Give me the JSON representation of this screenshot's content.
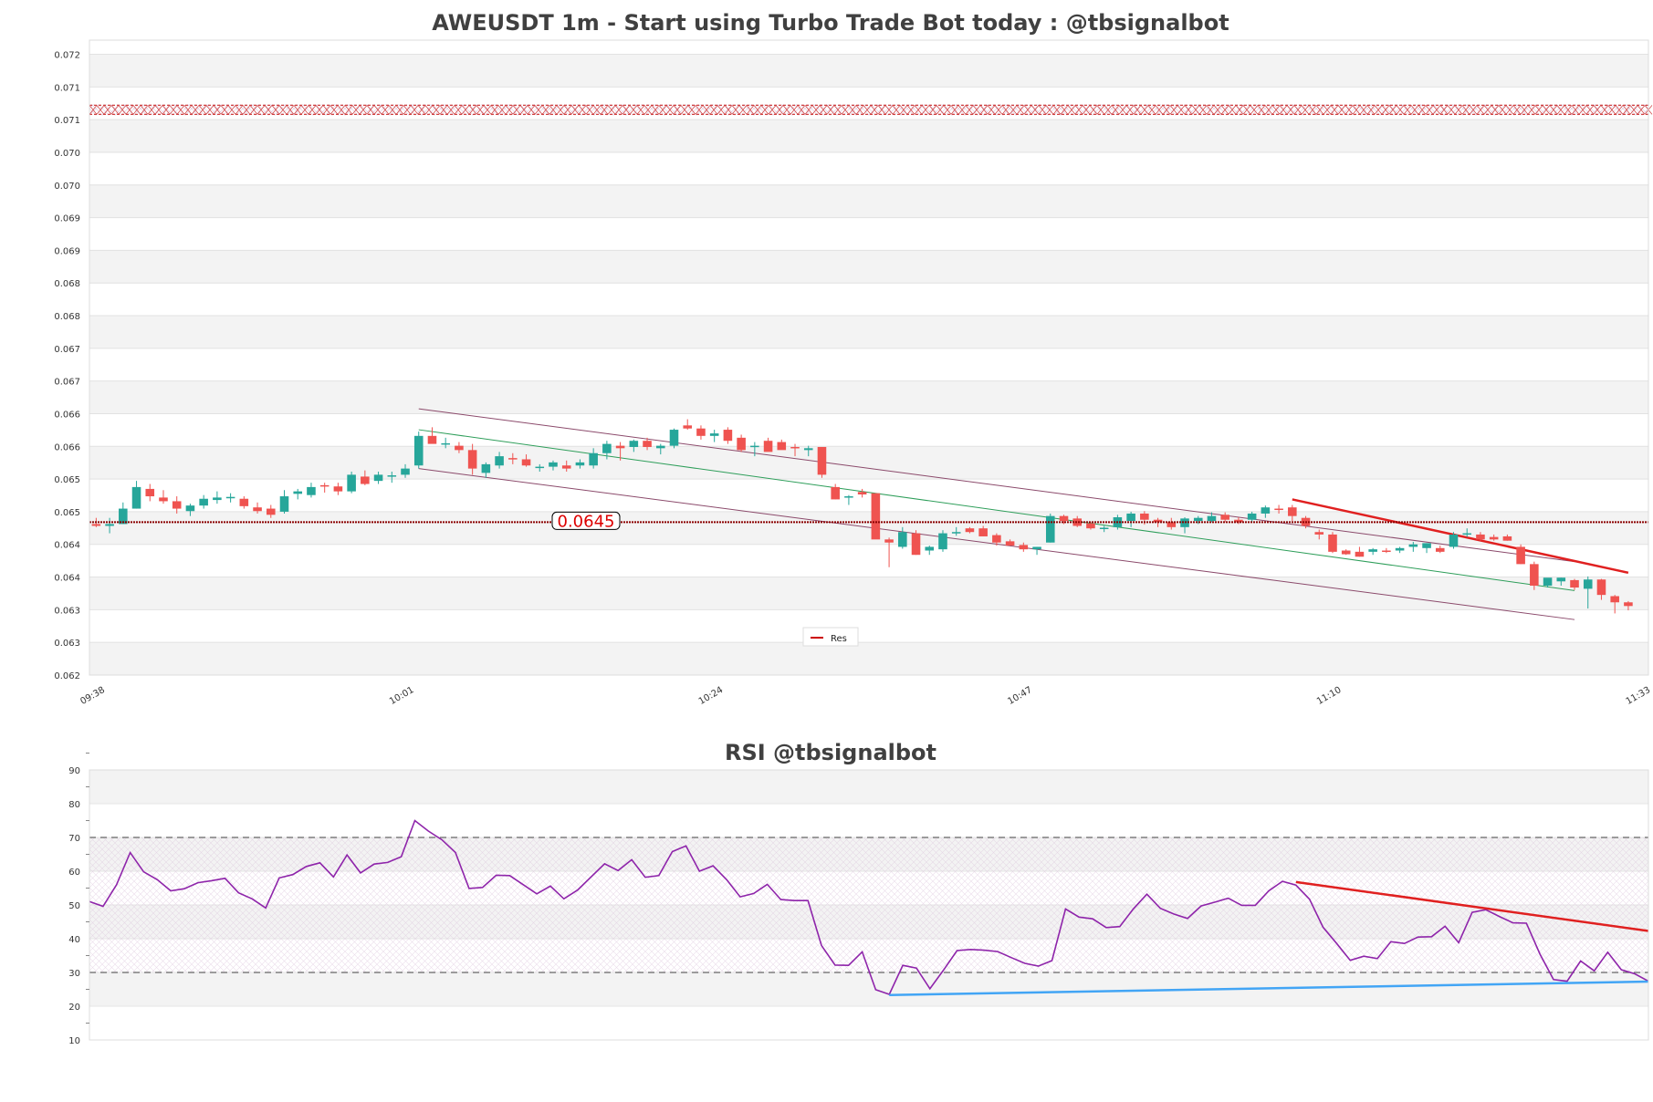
{
  "chart_data": [
    {
      "type": "candlestick",
      "title": "AWEUSDT 1m - Start using Turbo Trade Bot today : @tbsignalbot",
      "y_ticks": [
        "0.062",
        "0.063",
        "0.063",
        "0.064",
        "0.064",
        "0.065",
        "0.065",
        "0.066",
        "0.066",
        "0.067",
        "0.067",
        "0.068",
        "0.068",
        "0.069",
        "0.069",
        "0.070",
        "0.070",
        "0.071",
        "0.071",
        "0.072"
      ],
      "ylim": [
        0.062,
        0.0723
      ],
      "x_ticks": [
        "09:38",
        "10:01",
        "10:24",
        "10:47",
        "11:10",
        "11:33"
      ],
      "price_label": "0.0645",
      "legend": [
        "Res"
      ],
      "levels": {
        "support_line": 0.06448,
        "resistance_zone": 0.07117
      },
      "candles": [
        [
          0.06445,
          0.06455,
          0.0644,
          0.06442
        ],
        [
          0.06442,
          0.06455,
          0.0643,
          0.06445
        ],
        [
          0.06445,
          0.0648,
          0.06445,
          0.0647
        ],
        [
          0.0647,
          0.06515,
          0.0647,
          0.06505
        ],
        [
          0.06502,
          0.0651,
          0.06482,
          0.0649
        ],
        [
          0.06488,
          0.065,
          0.06478,
          0.06482
        ],
        [
          0.06482,
          0.0649,
          0.06462,
          0.0647
        ],
        [
          0.06466,
          0.06478,
          0.06458,
          0.06475
        ],
        [
          0.06475,
          0.06492,
          0.0647,
          0.06486
        ],
        [
          0.06484,
          0.06498,
          0.06478,
          0.06488
        ],
        [
          0.06488,
          0.06495,
          0.0648,
          0.06489
        ],
        [
          0.06486,
          0.0649,
          0.0647,
          0.06474
        ],
        [
          0.06472,
          0.0648,
          0.06462,
          0.06466
        ],
        [
          0.0647,
          0.06476,
          0.06455,
          0.0646
        ],
        [
          0.06465,
          0.065,
          0.06462,
          0.0649
        ],
        [
          0.06494,
          0.06502,
          0.06485,
          0.06498
        ],
        [
          0.06492,
          0.06512,
          0.06488,
          0.06505
        ],
        [
          0.06508,
          0.06512,
          0.06496,
          0.06506
        ],
        [
          0.06506,
          0.06512,
          0.06492,
          0.06498
        ],
        [
          0.06498,
          0.0653,
          0.06495,
          0.06525
        ],
        [
          0.06522,
          0.06532,
          0.06508,
          0.0651
        ],
        [
          0.06515,
          0.0653,
          0.0651,
          0.06525
        ],
        [
          0.06522,
          0.0653,
          0.06512,
          0.06524
        ],
        [
          0.06525,
          0.06542,
          0.0652,
          0.06535
        ],
        [
          0.0654,
          0.06595,
          0.06535,
          0.06588
        ],
        [
          0.06588,
          0.06602,
          0.06578,
          0.06575
        ],
        [
          0.06575,
          0.06585,
          0.06568,
          0.06576
        ],
        [
          0.06572,
          0.06578,
          0.0656,
          0.06565
        ],
        [
          0.06565,
          0.06575,
          0.06525,
          0.06535
        ],
        [
          0.06528,
          0.06545,
          0.0652,
          0.06542
        ],
        [
          0.0654,
          0.06562,
          0.06535,
          0.06555
        ],
        [
          0.06552,
          0.0656,
          0.06542,
          0.0655
        ],
        [
          0.0655,
          0.06558,
          0.06538,
          0.0654
        ],
        [
          0.06538,
          0.06542,
          0.0653,
          0.06538
        ],
        [
          0.06538,
          0.06548,
          0.06532,
          0.06545
        ],
        [
          0.0654,
          0.06548,
          0.0653,
          0.06535
        ],
        [
          0.0654,
          0.0655,
          0.06535,
          0.06545
        ],
        [
          0.0654,
          0.06568,
          0.06535,
          0.0656
        ],
        [
          0.0656,
          0.0658,
          0.0655,
          0.06575
        ],
        [
          0.06572,
          0.06578,
          0.06548,
          0.06568
        ],
        [
          0.0657,
          0.06582,
          0.06562,
          0.0658
        ],
        [
          0.0658,
          0.06585,
          0.06565,
          0.0657
        ],
        [
          0.06568,
          0.06575,
          0.06558,
          0.06572
        ],
        [
          0.06572,
          0.066,
          0.06568,
          0.06598
        ],
        [
          0.06605,
          0.06615,
          0.06598,
          0.066
        ],
        [
          0.066,
          0.06605,
          0.06582,
          0.06588
        ],
        [
          0.06588,
          0.06598,
          0.06578,
          0.06592
        ],
        [
          0.06598,
          0.06602,
          0.06575,
          0.0658
        ],
        [
          0.06585,
          0.0659,
          0.06562,
          0.06565
        ],
        [
          0.0657,
          0.06578,
          0.06555,
          0.06572
        ],
        [
          0.0658,
          0.06585,
          0.06568,
          0.06562
        ],
        [
          0.06578,
          0.06582,
          0.06568,
          0.06565
        ],
        [
          0.0657,
          0.06575,
          0.06555,
          0.06568
        ],
        [
          0.06565,
          0.06572,
          0.06555,
          0.06568
        ],
        [
          0.0657,
          0.0657,
          0.0652,
          0.06525
        ],
        [
          0.06505,
          0.0651,
          0.06485,
          0.06485
        ],
        [
          0.06488,
          0.06492,
          0.06476,
          0.0649
        ],
        [
          0.06497,
          0.06502,
          0.06488,
          0.06493
        ],
        [
          0.06495,
          0.06495,
          0.0643,
          0.0642
        ],
        [
          0.0642,
          0.06423,
          0.06375,
          0.06415
        ],
        [
          0.06408,
          0.0644,
          0.06405,
          0.06432
        ],
        [
          0.0643,
          0.06435,
          0.06395,
          0.06395
        ],
        [
          0.06402,
          0.0641,
          0.06395,
          0.06408
        ],
        [
          0.06404,
          0.06435,
          0.064,
          0.0643
        ],
        [
          0.0643,
          0.0644,
          0.06426,
          0.06432
        ],
        [
          0.06438,
          0.0644,
          0.0643,
          0.06432
        ],
        [
          0.06438,
          0.06442,
          0.06425,
          0.06425
        ],
        [
          0.06427,
          0.0643,
          0.0641,
          0.06415
        ],
        [
          0.06417,
          0.0642,
          0.0641,
          0.0641
        ],
        [
          0.06411,
          0.06415,
          0.064,
          0.06404
        ],
        [
          0.06404,
          0.06408,
          0.06395,
          0.06408
        ],
        [
          0.06415,
          0.06462,
          0.06415,
          0.06458
        ],
        [
          0.06458,
          0.0646,
          0.06445,
          0.0645
        ],
        [
          0.06454,
          0.06458,
          0.0644,
          0.06442
        ],
        [
          0.06446,
          0.06448,
          0.06436,
          0.06438
        ],
        [
          0.06438,
          0.06442,
          0.06432,
          0.06439
        ],
        [
          0.0644,
          0.0646,
          0.06436,
          0.06456
        ],
        [
          0.0645,
          0.06465,
          0.0644,
          0.06462
        ],
        [
          0.06462,
          0.06466,
          0.06444,
          0.06452
        ],
        [
          0.06452,
          0.06455,
          0.0644,
          0.06448
        ],
        [
          0.06448,
          0.06455,
          0.06436,
          0.0644
        ],
        [
          0.0644,
          0.06456,
          0.0643,
          0.06454
        ],
        [
          0.0645,
          0.06458,
          0.06445,
          0.06455
        ],
        [
          0.0645,
          0.06464,
          0.06448,
          0.06458
        ],
        [
          0.0646,
          0.06464,
          0.06448,
          0.06452
        ],
        [
          0.06452,
          0.06456,
          0.06445,
          0.06448
        ],
        [
          0.06452,
          0.06465,
          0.06448,
          0.06462
        ],
        [
          0.06462,
          0.06475,
          0.06455,
          0.06472
        ],
        [
          0.0647,
          0.06476,
          0.06462,
          0.06468
        ],
        [
          0.06472,
          0.06476,
          0.0645,
          0.06458
        ],
        [
          0.06455,
          0.06458,
          0.06438,
          0.06442
        ],
        [
          0.06432,
          0.06436,
          0.0642,
          0.06428
        ],
        [
          0.06428,
          0.06432,
          0.06398,
          0.064
        ],
        [
          0.06402,
          0.06404,
          0.06395,
          0.06396
        ],
        [
          0.064,
          0.06408,
          0.06392,
          0.06392
        ],
        [
          0.064,
          0.06406,
          0.06395,
          0.06404
        ],
        [
          0.06402,
          0.06406,
          0.06398,
          0.064
        ],
        [
          0.06402,
          0.06408,
          0.06398,
          0.06406
        ],
        [
          0.06408,
          0.06416,
          0.064,
          0.06412
        ],
        [
          0.06406,
          0.06414,
          0.06398,
          0.06414
        ],
        [
          0.06406,
          0.0641,
          0.06398,
          0.064
        ],
        [
          0.06408,
          0.06432,
          0.06405,
          0.06428
        ],
        [
          0.06428,
          0.06438,
          0.06424,
          0.0643
        ],
        [
          0.06428,
          0.06432,
          0.06418,
          0.0642
        ],
        [
          0.06424,
          0.06428,
          0.06418,
          0.0642
        ],
        [
          0.06425,
          0.06428,
          0.06418,
          0.06418
        ],
        [
          0.06408,
          0.06412,
          0.0638,
          0.0638
        ],
        [
          0.0638,
          0.06384,
          0.06338,
          0.06345
        ],
        [
          0.06345,
          0.06352,
          0.06342,
          0.06358
        ],
        [
          0.06352,
          0.06358,
          0.06345,
          0.06358
        ],
        [
          0.06354,
          0.06356,
          0.06338,
          0.06342
        ],
        [
          0.0634,
          0.0636,
          0.06308,
          0.06355
        ],
        [
          0.06355,
          0.06356,
          0.06322,
          0.0633
        ],
        [
          0.06328,
          0.0633,
          0.063,
          0.06318
        ],
        [
          0.06318,
          0.0632,
          0.06305,
          0.06312
        ]
      ]
    },
    {
      "type": "line",
      "title": "RSI @tbsignalbot",
      "y_ticks": [
        10,
        20,
        30,
        40,
        50,
        60,
        70,
        80,
        90
      ],
      "ylim": [
        10,
        90
      ],
      "bands": {
        "upper": 70,
        "lower": 30
      },
      "series": [
        {
          "values": [
            51,
            49.6,
            56,
            65.5,
            59.8,
            57.5,
            54.2,
            54.8,
            56.6,
            57.2,
            57.9,
            53.6,
            51.8,
            49.1,
            58,
            59,
            61.4,
            62.5,
            58.3,
            64.8,
            59.5,
            62.1,
            62.6,
            64.3,
            75,
            71.9,
            69.3,
            65.5,
            54.9,
            55.2,
            58.8,
            58.7,
            56,
            53.3,
            55.6,
            51.8,
            54.4,
            58.3,
            62.2,
            60.2,
            63.4,
            58.2,
            58.7,
            65.8,
            67.5,
            60,
            61.6,
            57.5,
            52.4,
            53.4,
            56.1,
            51.6,
            51.3,
            51.3,
            38,
            32.2,
            32.1,
            36.1,
            24.9,
            23.5,
            32.1,
            31.3,
            25.2,
            30.7,
            36.5,
            36.8,
            36.6,
            36.2,
            34.4,
            32.7,
            31.9,
            33.5,
            48.8,
            46.4,
            45.9,
            43.3,
            43.6,
            48.8,
            53.2,
            49,
            47.3,
            46,
            49.7,
            50.8,
            52,
            49.9,
            49.9,
            54.2,
            57,
            55.9,
            51.7,
            43.4,
            38.6,
            33.6,
            34.8,
            34.1,
            39.1,
            38.6,
            40.5,
            40.6,
            43.7,
            38.8,
            47.8,
            48.6,
            46.6,
            44.7,
            44.6,
            35.4,
            27.9,
            27.4,
            33.4,
            30.5,
            36,
            30.8,
            29.6,
            27.4
          ]
        }
      ]
    }
  ]
}
